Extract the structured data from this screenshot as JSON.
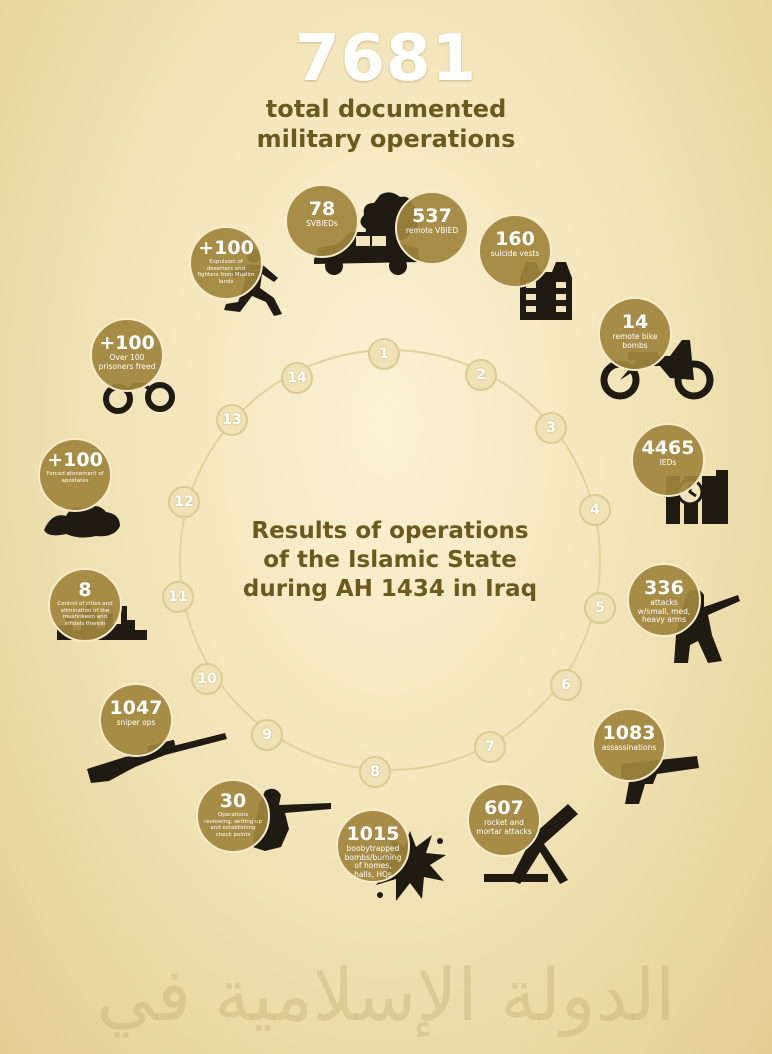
{
  "header": {
    "total": "7681",
    "subtitle_line1": "total documented",
    "subtitle_line2": "military operations"
  },
  "center_title": {
    "line1": "Results of operations",
    "line2": "of the Islamic State",
    "line3": "during AH 1434 in Iraq"
  },
  "ring_markers": [
    "1",
    "2",
    "3",
    "4",
    "5",
    "6",
    "7",
    "8",
    "9",
    "10",
    "11",
    "12",
    "13",
    "14"
  ],
  "watermark": "الدولة الإسلامية في العراق والشام",
  "colors": {
    "circle": "#a0843c",
    "title": "#6b5a1e",
    "icon": "#1f1a12"
  },
  "chart_data": {
    "type": "table",
    "total": 7681,
    "title": "Results of operations of the Islamic State during AH 1434 in Iraq",
    "items": [
      {
        "value": "78",
        "label": "SVBIEDs",
        "icon": "car-icon"
      },
      {
        "value": "537",
        "label": "remote VBIED",
        "icon": "car-explosion-icon"
      },
      {
        "value": "160",
        "label": "suicide vests",
        "icon": "vest-icon"
      },
      {
        "value": "14",
        "label": "remote bike bombs",
        "icon": "motorbike-icon"
      },
      {
        "value": "4465",
        "label": "IEDs",
        "icon": "time-bomb-icon"
      },
      {
        "value": "336",
        "label": "attacks w/small, med, heavy arms",
        "icon": "rpg-soldier-icon"
      },
      {
        "value": "1083",
        "label": "assassinations",
        "icon": "pistol-icon"
      },
      {
        "value": "607",
        "label": "rocket and mortar attacks",
        "icon": "mortar-icon"
      },
      {
        "value": "1015",
        "label": "boobytrapped bombs/burning of homes, halls, HQs",
        "icon": "explosion-splat-icon"
      },
      {
        "value": "30",
        "label": "Operations reviewing, setting up and establishing check points",
        "icon": "rifleman-icon"
      },
      {
        "value": "1047",
        "label": "sniper ops",
        "icon": "sniper-rifle-icon"
      },
      {
        "value": "8",
        "label": "Control of cities and elimination of the mushrikeen and infidels therein",
        "icon": "city-skyline-icon"
      },
      {
        "value": "+100",
        "label": "Forced atonement of apostates",
        "icon": "debris-icon"
      },
      {
        "value": "+100",
        "label": "Over 100 prisoners freed",
        "icon": "handcuffs-icon"
      },
      {
        "value": "+100",
        "label": "Expulsion of deserters and fighters from Muslim lands",
        "icon": "running-man-icon"
      }
    ]
  }
}
